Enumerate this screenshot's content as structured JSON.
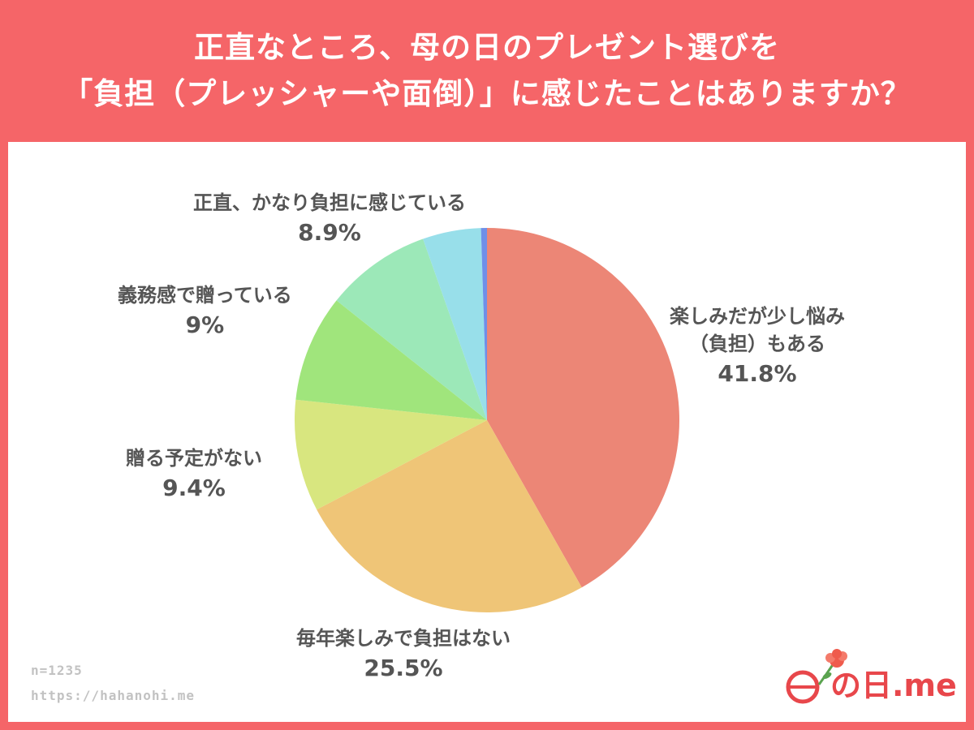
{
  "header": {
    "title_line1": "正直なところ、母の日のプレゼント選びを",
    "title_line2": "「負担（プレッシャーや面倒）」に感じたことはありますか？"
  },
  "chart_data": {
    "type": "pie",
    "title": "正直なところ、母の日のプレゼント選びを「負担（プレッシャーや面倒）」に感じたことはありますか？",
    "slices": [
      {
        "label_line1": "楽しみだが少し悩み",
        "label_line2": "（負担）もある",
        "value": 41.8,
        "display": "41.8%",
        "color": "#ec8676"
      },
      {
        "label_line1": "毎年楽しみで負担はない",
        "label_line2": "",
        "value": 25.5,
        "display": "25.5%",
        "color": "#efc577"
      },
      {
        "label_line1": "贈る予定がない",
        "label_line2": "",
        "value": 9.4,
        "display": "9.4%",
        "color": "#d8e67f"
      },
      {
        "label_line1": "義務感で贈っている",
        "label_line2": "",
        "value": 9.0,
        "display": "9%",
        "color": "#a0e57c"
      },
      {
        "label_line1": "正直、かなり負担に感じている",
        "label_line2": "",
        "value": 8.9,
        "display": "8.9%",
        "color": "#9ce8b8"
      },
      {
        "label_line1": "",
        "label_line2": "",
        "value": 4.9,
        "display": "",
        "color": "#98dfea"
      },
      {
        "label_line1": "",
        "label_line2": "",
        "value": 0.5,
        "display": "",
        "color": "#6f8fe8"
      }
    ]
  },
  "footer": {
    "sample_size": "n=1235",
    "url": "https://hahanohi.me",
    "logo_text": "の日.me",
    "logo_icon": "carnation-icon"
  },
  "colors": {
    "background": "#f56568",
    "text": "#555555",
    "brand": "#e8474b"
  }
}
